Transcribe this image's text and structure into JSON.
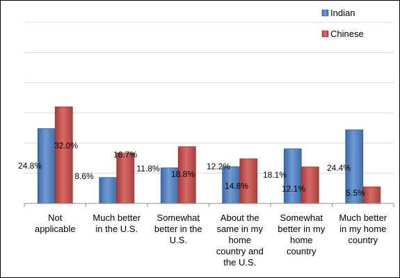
{
  "chart_data": {
    "type": "bar",
    "title": "",
    "xlabel": "",
    "ylabel": "",
    "ylim": [
      0,
      60
    ],
    "grid": true,
    "legend_position": "top-right",
    "categories": [
      [
        "Not",
        "applicable"
      ],
      [
        "Much better",
        "in the U.S."
      ],
      [
        "Somewhat",
        "better in the",
        "U.S."
      ],
      [
        "About the",
        "same in my",
        "home",
        "country and",
        "the U.S."
      ],
      [
        "Somewhat",
        "better in my",
        "home",
        "country"
      ],
      [
        "Much better",
        "in my home",
        "country"
      ]
    ],
    "series": [
      {
        "name": "Indian",
        "color": "#4F81BD",
        "values": [
          24.8,
          8.6,
          11.8,
          12.2,
          18.1,
          24.4
        ],
        "labels": [
          "24.8%",
          "8.6%",
          "11.8%",
          "12.2%",
          "18.1%",
          "24.4%"
        ]
      },
      {
        "name": "Chinese",
        "color": "#C0504D",
        "values": [
          32.0,
          16.7,
          18.8,
          14.8,
          12.1,
          5.5
        ],
        "labels": [
          "32.0%",
          "16.7%",
          "18.8%",
          "14.8%",
          "12.1%",
          "5.5%"
        ]
      }
    ]
  }
}
